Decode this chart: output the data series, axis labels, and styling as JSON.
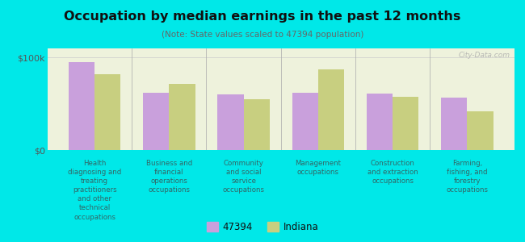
{
  "title": "Occupation by median earnings in the past 12 months",
  "subtitle": "(Note: State values scaled to 47394 population)",
  "background_color": "#00e8e8",
  "plot_bg_color": "#eef2dc",
  "categories": [
    "Health\ndiagnosing and\ntreating\npractitioners\nand other\ntechnical\noccupations",
    "Business and\nfinancial\noperations\noccupations",
    "Community\nand social\nservice\noccupations",
    "Management\noccupations",
    "Construction\nand extraction\noccupations",
    "Farming,\nfishing, and\nforestry\noccupations"
  ],
  "values_47394": [
    95000,
    62000,
    60000,
    62000,
    61000,
    57000
  ],
  "values_indiana": [
    82000,
    72000,
    55000,
    87000,
    58000,
    42000
  ],
  "color_47394": "#c9a0dc",
  "color_indiana": "#c8cf80",
  "ylim": [
    0,
    110000
  ],
  "yticks": [
    0,
    100000
  ],
  "ytick_labels": [
    "$0",
    "$100k"
  ],
  "legend_47394": "47394",
  "legend_indiana": "Indiana",
  "watermark": "City-Data.com",
  "title_color": "#111111",
  "subtitle_color": "#666666",
  "xlabel_color": "#336666"
}
